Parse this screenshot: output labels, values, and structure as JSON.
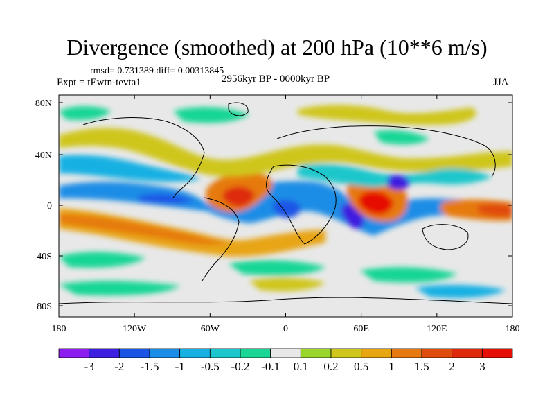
{
  "title": "Divergence (smoothed) at 200 hPa (10**6 m/s)",
  "stats": "rmsd= 0.731389 diff= 0.00313845",
  "experiment": "Expt = tEwtn-tevta1",
  "period": "2956kyr BP - 0000kyr BP",
  "season": "JJA",
  "axes": {
    "lon_ticks": [
      "180",
      "120W",
      "60W",
      "0",
      "60E",
      "120E",
      "180"
    ],
    "lat_ticks": [
      "80N",
      "40N",
      "0",
      "40S",
      "80S"
    ]
  },
  "colorbar": {
    "labels": [
      "-3",
      "-2",
      "-1.5",
      "-1",
      "-0.5",
      "-0.2",
      "-0.1",
      "0.1",
      "0.2",
      "0.5",
      "1",
      "1.5",
      "2",
      "3"
    ],
    "colors": [
      "#8c1cf0",
      "#3c1fe0",
      "#1b55e6",
      "#1a8de6",
      "#17b0e3",
      "#1bc7cc",
      "#19d695",
      "#e8e8e8",
      "#9ad62a",
      "#cfc61c",
      "#e8a512",
      "#e67a10",
      "#e04c0c",
      "#de2a0a",
      "#e60f06"
    ]
  }
}
